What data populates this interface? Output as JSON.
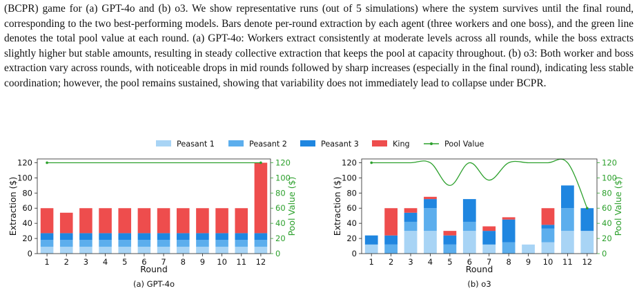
{
  "caption": {
    "text": "(BCPR) game for (a) GPT-4o and (b) o3. We show representative runs (out of 5 simulations) where the system survives until the final round, corresponding to the two best-performing models. Bars denote per-round extraction by each agent (three workers and one boss), and the green line denotes the total pool value at each round. (a) GPT-4o: Workers extract consistently at moderate levels across all rounds, while the boss extracts slightly higher but stable amounts, resulting in steady collective extraction that keeps the pool at capacity throughout. (b) o3: Both worker and boss extraction vary across rounds, with noticeable drops in mid rounds followed by sharp increases (especially in the final round), indicating less stable coordination; however, the pool remains sustained, showing that variability does not immediately lead to collapse under BCPR."
  },
  "colors": {
    "peasant1": "#a8d4f5",
    "peasant2": "#5caeed",
    "peasant3": "#1f86e0",
    "king": "#ee4d4d",
    "pool": "#2ca02c"
  },
  "legend": {
    "placement": "top-center",
    "items": [
      "Peasant 1",
      "Peasant 2",
      "Peasant 3",
      "King",
      "Pool Value"
    ]
  },
  "chart_data": [
    {
      "type": "bar",
      "stacked": true,
      "title": "(a) GPT-4o",
      "xlabel": "Round",
      "ylabel": "Extraction ($)",
      "y2label": "Pool Value ($)",
      "categories": [
        "1",
        "2",
        "3",
        "4",
        "5",
        "6",
        "7",
        "8",
        "9",
        "10",
        "11",
        "12"
      ],
      "ylim": [
        0,
        125
      ],
      "y2lim": [
        0,
        125
      ],
      "yticks": [
        0,
        20,
        40,
        60,
        80,
        100,
        120
      ],
      "y2ticks": [
        0,
        20,
        40,
        60,
        80,
        100,
        120
      ],
      "grid": false,
      "series": [
        {
          "name": "Peasant 1",
          "values": [
            9,
            9,
            9,
            9,
            9,
            9,
            9,
            9,
            9,
            9,
            9,
            9
          ]
        },
        {
          "name": "Peasant 2",
          "values": [
            9,
            9,
            9,
            9,
            9,
            9,
            9,
            9,
            9,
            9,
            9,
            9
          ]
        },
        {
          "name": "Peasant 3",
          "values": [
            9,
            9,
            9,
            9,
            9,
            9,
            9,
            9,
            9,
            9,
            9,
            9
          ]
        },
        {
          "name": "King",
          "values": [
            33,
            27,
            33,
            33,
            33,
            33,
            33,
            33,
            33,
            33,
            33,
            93
          ]
        }
      ],
      "pool": {
        "name": "Pool Value",
        "values": [
          120,
          120,
          120,
          120,
          120,
          120,
          120,
          120,
          120,
          120,
          120,
          120
        ]
      }
    },
    {
      "type": "bar",
      "stacked": true,
      "title": "(b) o3",
      "xlabel": "Round",
      "ylabel": "Extraction ($)",
      "y2label": "Pool Value ($)",
      "categories": [
        "1",
        "2",
        "3",
        "4",
        "5",
        "6",
        "7",
        "8",
        "9",
        "10",
        "11",
        "12"
      ],
      "ylim": [
        0,
        125
      ],
      "y2lim": [
        0,
        125
      ],
      "yticks": [
        0,
        20,
        40,
        60,
        80,
        100,
        120
      ],
      "y2ticks": [
        0,
        20,
        40,
        60,
        80,
        100,
        120
      ],
      "grid": false,
      "series": [
        {
          "name": "Peasant 1",
          "values": [
            12,
            0,
            30,
            30,
            0,
            30,
            12,
            0,
            12,
            15,
            30,
            30
          ]
        },
        {
          "name": "Peasant 2",
          "values": [
            0,
            12,
            12,
            30,
            12,
            12,
            0,
            15,
            0,
            18,
            30,
            0
          ]
        },
        {
          "name": "Peasant 3",
          "values": [
            12,
            12,
            12,
            12,
            12,
            30,
            18,
            30,
            0,
            5,
            30,
            30
          ]
        },
        {
          "name": "King",
          "values": [
            0,
            36,
            6,
            3,
            6,
            0,
            6,
            3,
            0,
            22,
            0,
            0
          ]
        }
      ],
      "pool": {
        "name": "Pool Value",
        "values": [
          120,
          120,
          120,
          120,
          90,
          120,
          97,
          120,
          120,
          120,
          120,
          60
        ]
      }
    }
  ]
}
